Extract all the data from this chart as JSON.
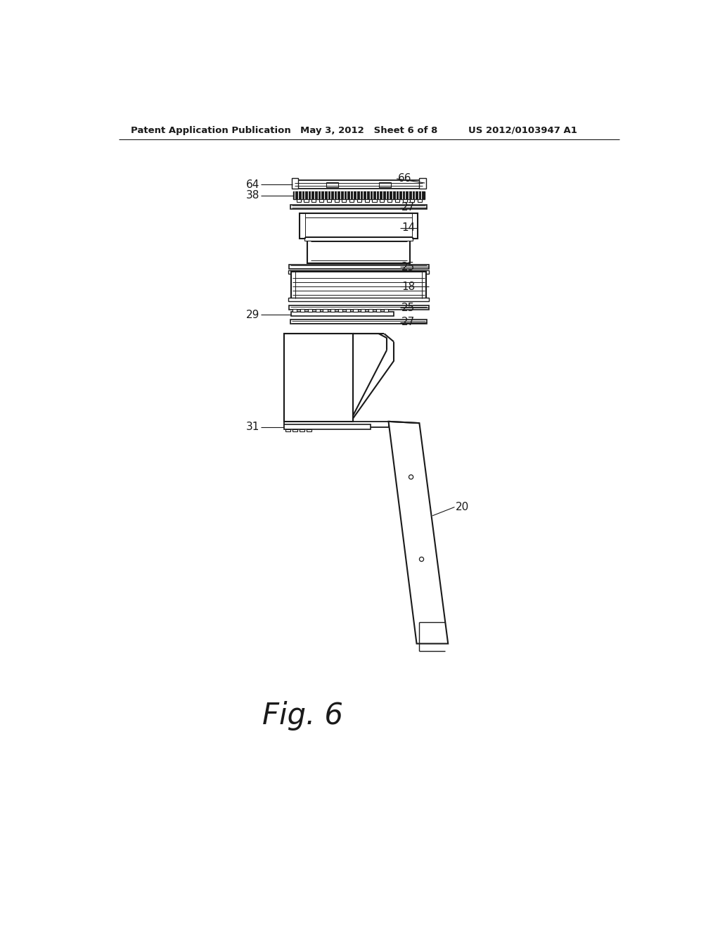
{
  "header_left": "Patent Application Publication",
  "header_mid": "May 3, 2012   Sheet 6 of 8",
  "header_right": "US 2012/0103947 A1",
  "fig_label": "Fig. 6",
  "bg_color": "#ffffff",
  "line_color": "#1a1a1a"
}
